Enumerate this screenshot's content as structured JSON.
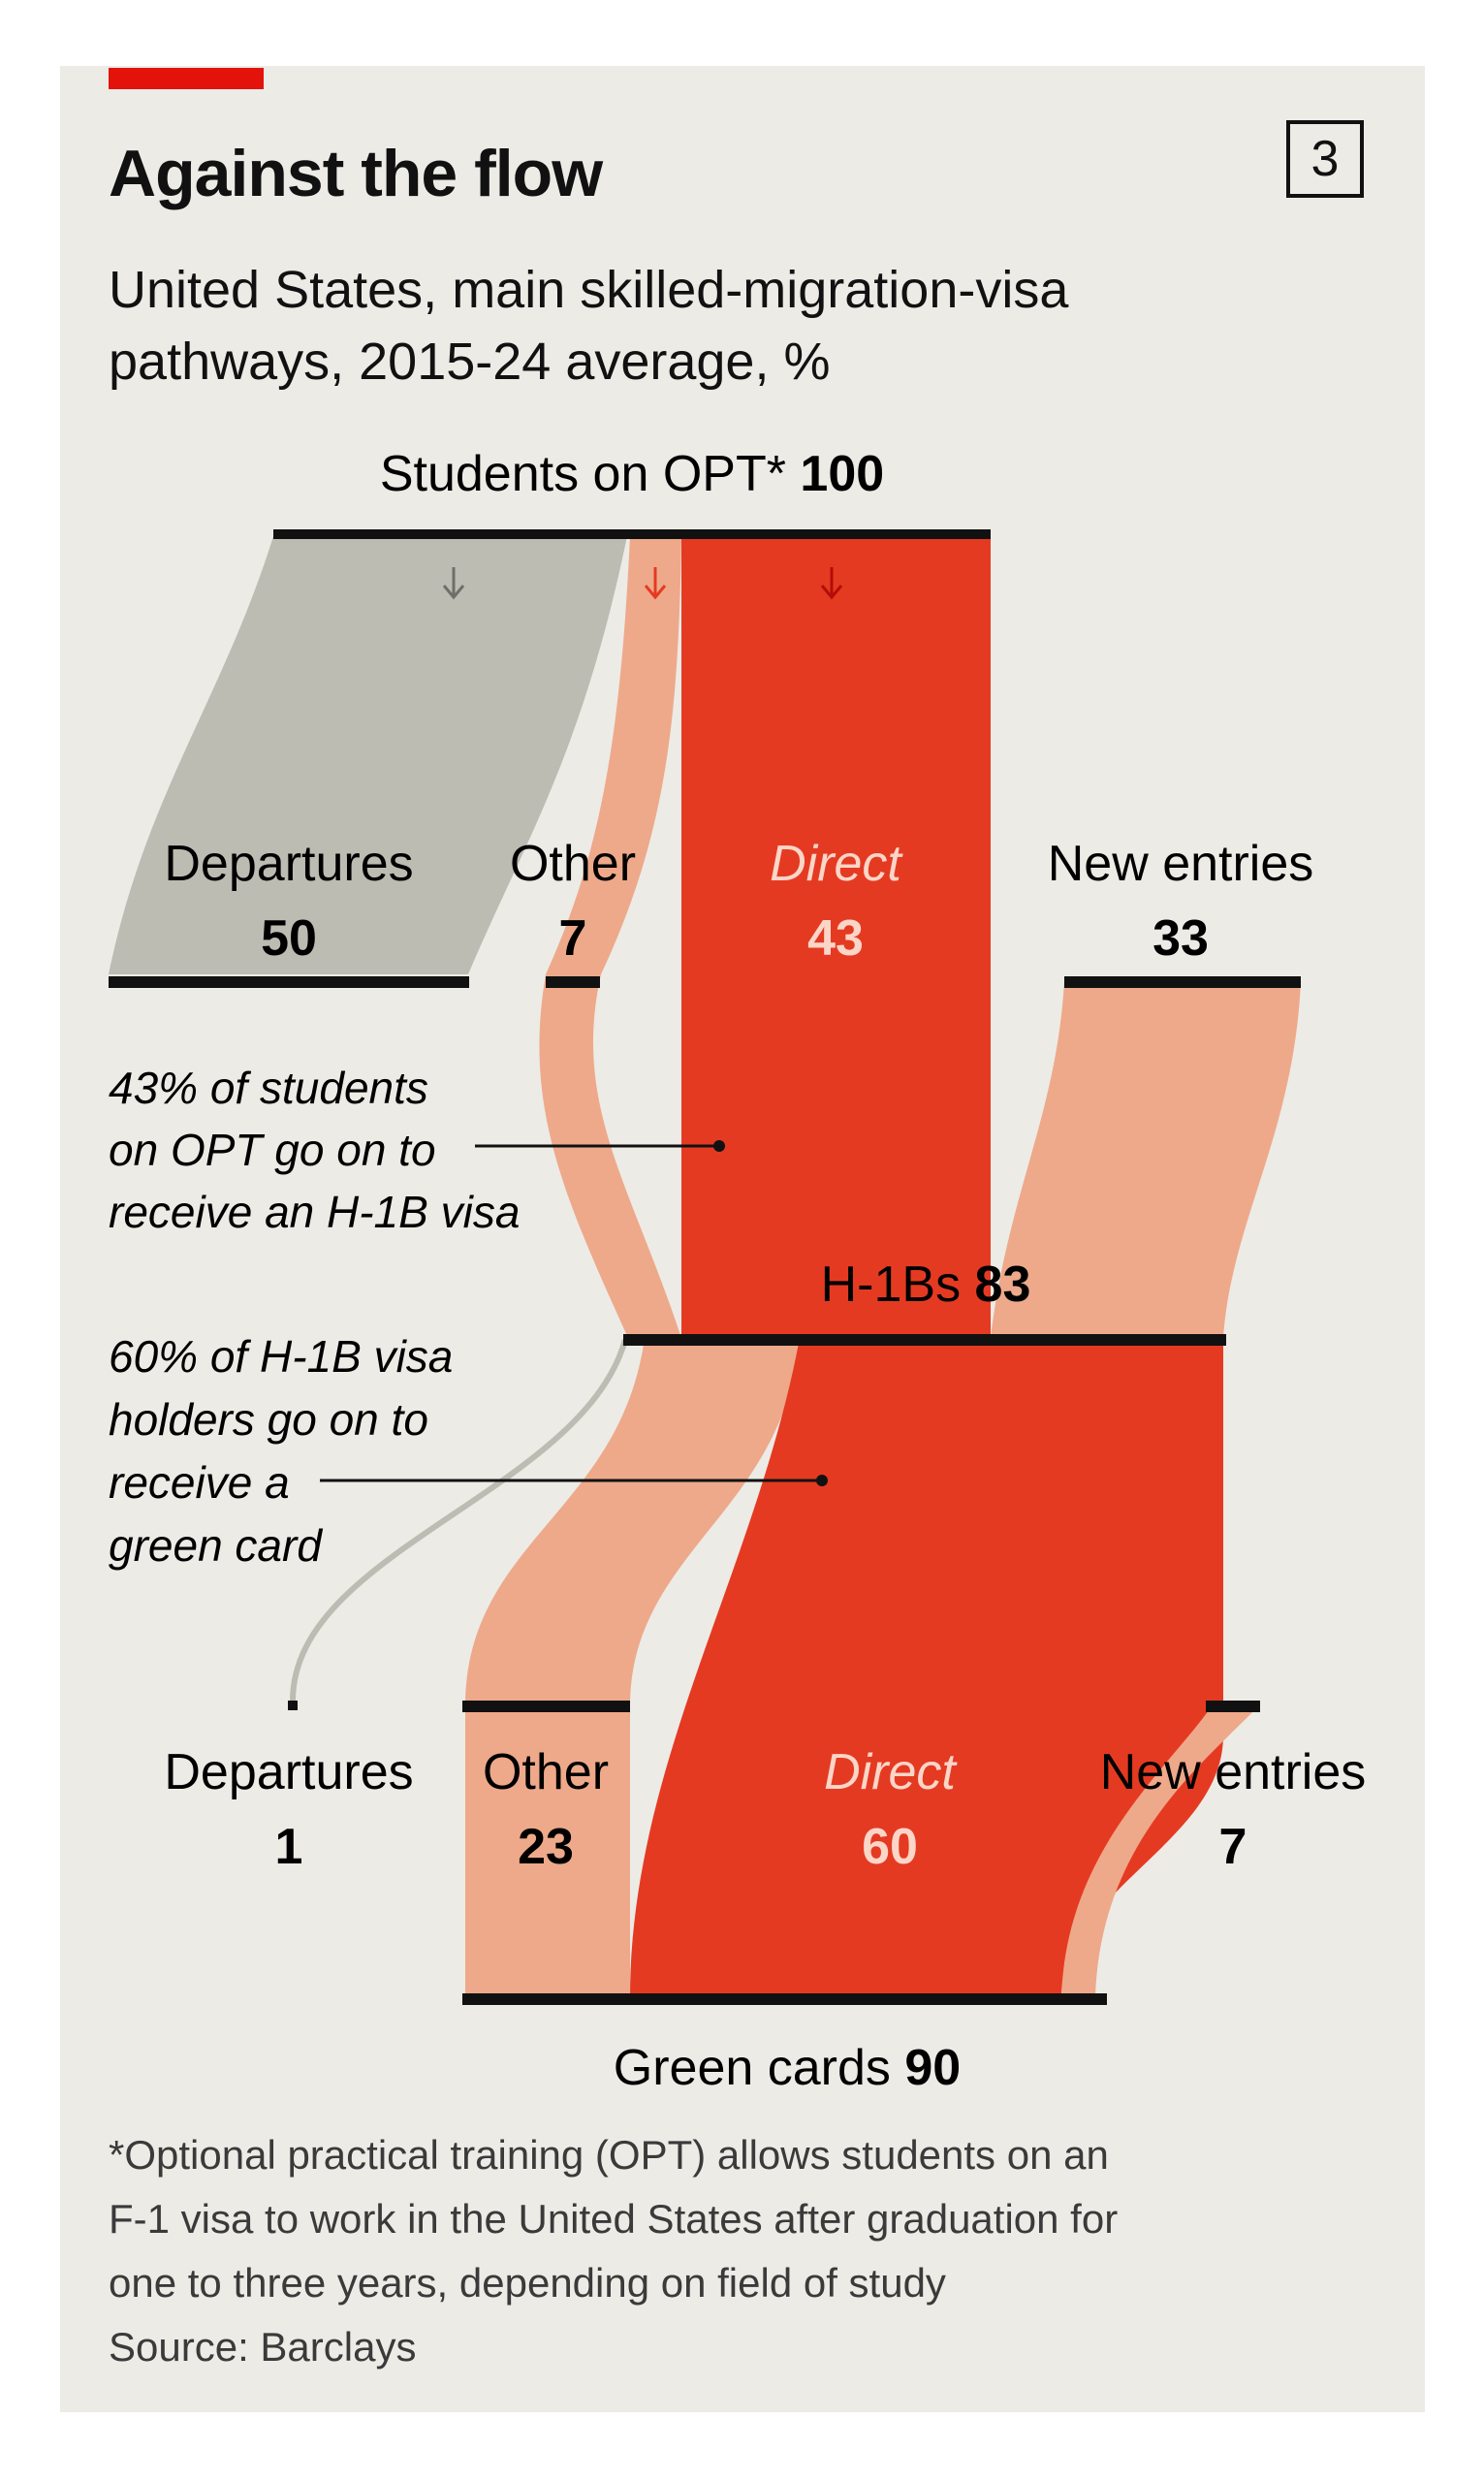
{
  "header": {
    "title": "Against the flow",
    "chart_number": "3",
    "subtitle_line1": "United States, main skilled-migration-visa",
    "subtitle_line2": "pathways, 2015-24 average, %"
  },
  "colors": {
    "background": "#ecebe6",
    "accent_red": "#e3120b",
    "direct_flow": "#e53a22",
    "other_flow": "#eea98a",
    "departures_flow": "#bdbcb3",
    "bar": "#111111"
  },
  "nodes": {
    "students": {
      "name": "Students on OPT*",
      "value": "100"
    },
    "departures_1": {
      "name": "Departures",
      "value": "50"
    },
    "other_1": {
      "name": "Other",
      "value": "7"
    },
    "direct_1": {
      "name": "Direct",
      "value": "43"
    },
    "new_entries_1": {
      "name": "New entries",
      "value": "33"
    },
    "h1b": {
      "name": "H-1Bs",
      "value": "83"
    },
    "departures_2": {
      "name": "Departures",
      "value": "1"
    },
    "other_2": {
      "name": "Other",
      "value": "23"
    },
    "direct_2": {
      "name": "Direct",
      "value": "60"
    },
    "new_entries_2": {
      "name": "New entries",
      "value": "7"
    },
    "green_cards": {
      "name": "Green cards",
      "value": "90"
    }
  },
  "annotations": {
    "opt_to_h1b": [
      "43% of students",
      "on OPT go on to",
      "receive an H-1B visa"
    ],
    "h1b_to_green": [
      "60% of H-1B visa",
      "holders go on to",
      "receive a",
      "green card"
    ]
  },
  "footnote": {
    "lines": [
      "*Optional practical training (OPT) allows students on an",
      "F-1 visa to work in the United States after graduation for",
      "one to three years, depending on field of study"
    ],
    "source": "Source: Barclays"
  },
  "chart_data": {
    "type": "sankey",
    "title": "Against the flow",
    "subtitle": "United States, main skilled-migration-visa pathways, 2015-24 average, %",
    "stages": [
      {
        "from": "Students on OPT*",
        "to": "H-1Bs",
        "flows": [
          {
            "name": "Departures",
            "value": 50
          },
          {
            "name": "Other",
            "value": 7
          },
          {
            "name": "Direct",
            "value": 43
          },
          {
            "name": "New entries",
            "value": 33
          }
        ]
      },
      {
        "from": "H-1Bs",
        "to": "Green cards",
        "flows": [
          {
            "name": "Departures",
            "value": 1
          },
          {
            "name": "Other",
            "value": 23
          },
          {
            "name": "Direct",
            "value": 60
          },
          {
            "name": "New entries",
            "value": 7
          }
        ]
      }
    ],
    "totals": {
      "Students on OPT*": 100,
      "H-1Bs": 83,
      "Green cards": 90
    }
  }
}
